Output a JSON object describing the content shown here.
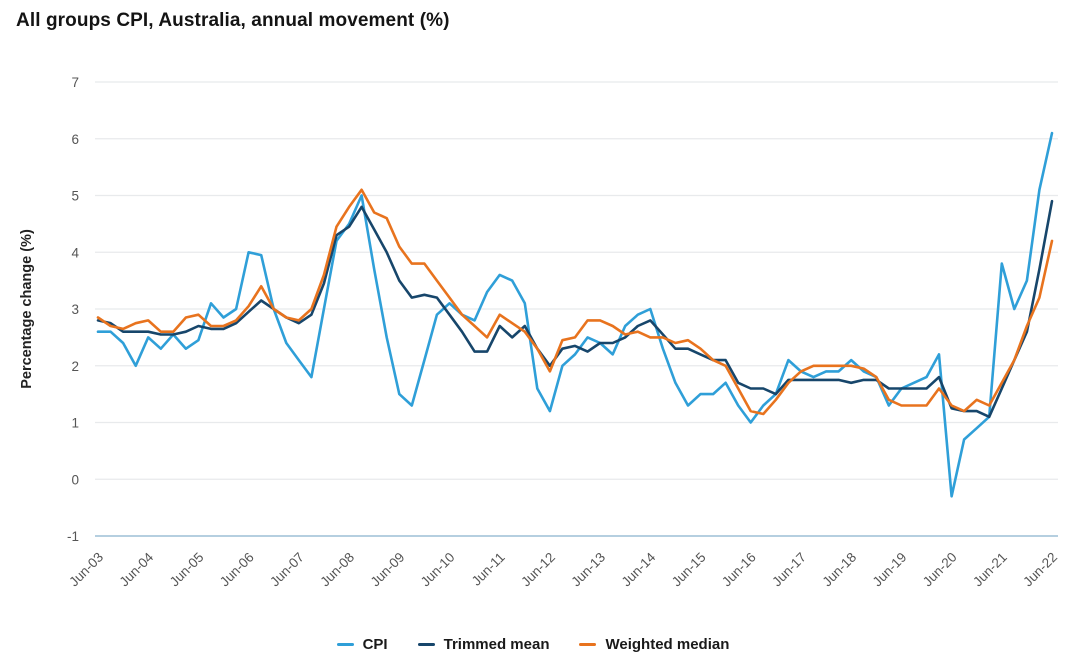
{
  "title": "All groups CPI, Australia, annual movement (%)",
  "colors": {
    "cpi": "#2f9fd8",
    "trimmed_mean": "#17466b",
    "weighted_median": "#e8731e",
    "gridline": "#e8eaec",
    "baseline": "#b5cfe0",
    "tick_text": "#555555",
    "title_text": "#141414"
  },
  "legend": {
    "items": [
      {
        "label": "CPI",
        "color": "#2f9fd8"
      },
      {
        "label": "Trimmed mean",
        "color": "#17466b"
      },
      {
        "label": "Weighted median",
        "color": "#e8731e"
      }
    ]
  },
  "chart_data": {
    "type": "line",
    "title": "All groups CPI, Australia, annual movement (%)",
    "ylabel": "Percentage change (%)",
    "xlabel": "",
    "ylim": [
      -1,
      7
    ],
    "y_ticks": [
      7,
      6,
      5,
      4,
      3,
      2,
      1,
      0,
      -1
    ],
    "x_tick_labels": [
      "Jun-03",
      "Jun-04",
      "Jun-05",
      "Jun-06",
      "Jun-07",
      "Jun-08",
      "Jun-09",
      "Jun-10",
      "Jun-11",
      "Jun-12",
      "Jun-13",
      "Jun-14",
      "Jun-15",
      "Jun-16",
      "Jun-17",
      "Jun-18",
      "Jun-19",
      "Jun-20",
      "Jun-21",
      "Jun-22"
    ],
    "x_tick_every": 4,
    "grid": "horizontal",
    "legend_position": "bottom",
    "x": [
      "Jun-03",
      "Sep-03",
      "Dec-03",
      "Mar-04",
      "Jun-04",
      "Sep-04",
      "Dec-04",
      "Mar-05",
      "Jun-05",
      "Sep-05",
      "Dec-05",
      "Mar-06",
      "Jun-06",
      "Sep-06",
      "Dec-06",
      "Mar-07",
      "Jun-07",
      "Sep-07",
      "Dec-07",
      "Mar-08",
      "Jun-08",
      "Sep-08",
      "Dec-08",
      "Mar-09",
      "Jun-09",
      "Sep-09",
      "Dec-09",
      "Mar-10",
      "Jun-10",
      "Sep-10",
      "Dec-10",
      "Mar-11",
      "Jun-11",
      "Sep-11",
      "Dec-11",
      "Mar-12",
      "Jun-12",
      "Sep-12",
      "Dec-12",
      "Mar-13",
      "Jun-13",
      "Sep-13",
      "Dec-13",
      "Mar-14",
      "Jun-14",
      "Sep-14",
      "Dec-14",
      "Mar-15",
      "Jun-15",
      "Sep-15",
      "Dec-15",
      "Mar-16",
      "Jun-16",
      "Sep-16",
      "Dec-16",
      "Mar-17",
      "Jun-17",
      "Sep-17",
      "Dec-17",
      "Mar-18",
      "Jun-18",
      "Sep-18",
      "Dec-18",
      "Mar-19",
      "Jun-19",
      "Sep-19",
      "Dec-19",
      "Mar-20",
      "Jun-20",
      "Sep-20",
      "Dec-20",
      "Mar-21",
      "Jun-21",
      "Sep-21",
      "Dec-21",
      "Mar-22",
      "Jun-22"
    ],
    "series": [
      {
        "name": "CPI",
        "color": "#2f9fd8",
        "values": [
          2.6,
          2.6,
          2.4,
          2.0,
          2.5,
          2.3,
          2.55,
          2.3,
          2.45,
          3.1,
          2.85,
          3.0,
          4.0,
          3.95,
          3.0,
          2.4,
          2.1,
          1.8,
          3.0,
          4.2,
          4.5,
          5.0,
          3.7,
          2.5,
          1.5,
          1.3,
          2.1,
          2.9,
          3.1,
          2.9,
          2.8,
          3.3,
          3.6,
          3.5,
          3.1,
          1.6,
          1.2,
          2.0,
          2.2,
          2.5,
          2.4,
          2.2,
          2.7,
          2.9,
          3.0,
          2.3,
          1.7,
          1.3,
          1.5,
          1.5,
          1.7,
          1.3,
          1.0,
          1.3,
          1.5,
          2.1,
          1.9,
          1.8,
          1.9,
          1.9,
          2.1,
          1.9,
          1.8,
          1.3,
          1.6,
          1.7,
          1.8,
          2.2,
          -0.3,
          0.7,
          0.9,
          1.1,
          3.8,
          3.0,
          3.5,
          5.1,
          6.1
        ]
      },
      {
        "name": "Trimmed mean",
        "color": "#17466b",
        "values": [
          2.8,
          2.75,
          2.6,
          2.6,
          2.6,
          2.55,
          2.55,
          2.6,
          2.7,
          2.65,
          2.65,
          2.75,
          2.95,
          3.15,
          3.0,
          2.85,
          2.75,
          2.9,
          3.45,
          4.3,
          4.45,
          4.8,
          4.4,
          4.0,
          3.5,
          3.2,
          3.25,
          3.2,
          2.9,
          2.6,
          2.25,
          2.25,
          2.7,
          2.5,
          2.7,
          2.3,
          2.0,
          2.3,
          2.35,
          2.25,
          2.4,
          2.4,
          2.5,
          2.7,
          2.8,
          2.55,
          2.3,
          2.3,
          2.2,
          2.1,
          2.1,
          1.7,
          1.6,
          1.6,
          1.5,
          1.75,
          1.75,
          1.75,
          1.75,
          1.75,
          1.7,
          1.75,
          1.75,
          1.6,
          1.6,
          1.6,
          1.6,
          1.8,
          1.25,
          1.2,
          1.2,
          1.1,
          1.6,
          2.1,
          2.6,
          3.7,
          4.9
        ]
      },
      {
        "name": "Weighted median",
        "color": "#e8731e",
        "values": [
          2.85,
          2.7,
          2.65,
          2.75,
          2.8,
          2.6,
          2.6,
          2.85,
          2.9,
          2.7,
          2.7,
          2.8,
          3.05,
          3.4,
          3.0,
          2.85,
          2.8,
          3.0,
          3.6,
          4.45,
          4.8,
          5.1,
          4.7,
          4.6,
          4.1,
          3.8,
          3.8,
          3.5,
          3.2,
          2.9,
          2.7,
          2.5,
          2.9,
          2.75,
          2.6,
          2.3,
          1.9,
          2.45,
          2.5,
          2.8,
          2.8,
          2.7,
          2.55,
          2.6,
          2.5,
          2.5,
          2.4,
          2.45,
          2.3,
          2.1,
          2.0,
          1.6,
          1.2,
          1.15,
          1.4,
          1.7,
          1.9,
          2.0,
          2.0,
          2.0,
          2.0,
          1.95,
          1.8,
          1.4,
          1.3,
          1.3,
          1.3,
          1.6,
          1.3,
          1.2,
          1.4,
          1.3,
          1.7,
          2.1,
          2.7,
          3.2,
          4.2
        ]
      }
    ]
  }
}
